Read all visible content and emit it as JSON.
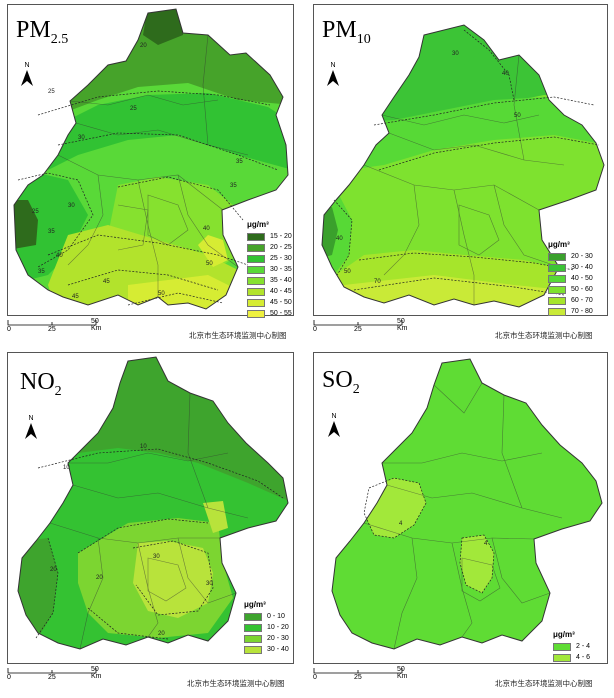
{
  "panels": [
    {
      "id": "pm25",
      "title_main": "PM",
      "title_sub": "2.5",
      "legend_unit": "μg/m³",
      "legend": [
        {
          "label": "15 - 20",
          "color": "#2e6b1c"
        },
        {
          "label": "20 - 25",
          "color": "#46a32a"
        },
        {
          "label": "25 - 30",
          "color": "#31c233"
        },
        {
          "label": "30 - 35",
          "color": "#59d938"
        },
        {
          "label": "35 - 40",
          "color": "#86e12f"
        },
        {
          "label": "40 - 45",
          "color": "#b2e32c"
        },
        {
          "label": "45 - 50",
          "color": "#d6ec33"
        },
        {
          "label": "50 - 55",
          "color": "#eef03f"
        }
      ],
      "contour_labels": [
        "20",
        "25",
        "25",
        "30",
        "35",
        "35",
        "25",
        "40",
        "40",
        "45",
        "45",
        "50",
        "50",
        "35",
        "35",
        "30"
      ],
      "scale": {
        "ticks": [
          "0",
          "25",
          "50 Km"
        ]
      },
      "credit": "北京市生态环境监测中心制图"
    },
    {
      "id": "pm10",
      "title_main": "PM",
      "title_sub": "10",
      "legend_unit": "μg/m³",
      "legend": [
        {
          "label": "20 - 30",
          "color": "#3aa02c"
        },
        {
          "label": "30 - 40",
          "color": "#3cc436"
        },
        {
          "label": "40 - 50",
          "color": "#57d936"
        },
        {
          "label": "50 - 60",
          "color": "#7ee22f"
        },
        {
          "label": "60 - 70",
          "color": "#a6e52b"
        },
        {
          "label": "70 - 80",
          "color": "#c9ea37"
        }
      ],
      "contour_labels": [
        "30",
        "40",
        "50",
        "50",
        "70",
        "40"
      ],
      "scale": {
        "ticks": [
          "0",
          "25",
          "50 Km"
        ]
      },
      "credit": "北京市生态环境监测中心制图"
    },
    {
      "id": "no2",
      "title_main": "NO",
      "title_sub": "2",
      "legend_unit": "μg/m³",
      "legend": [
        {
          "label": "0 - 10",
          "color": "#3ea42d"
        },
        {
          "label": "10 - 20",
          "color": "#34c232"
        },
        {
          "label": "20 - 30",
          "color": "#7cd531"
        },
        {
          "label": "30 - 40",
          "color": "#b8e33b"
        }
      ],
      "contour_labels": [
        "10",
        "10",
        "20",
        "20",
        "20",
        "30",
        "30"
      ],
      "scale": {
        "ticks": [
          "0",
          "25",
          "50 Km"
        ]
      },
      "credit": "北京市生态环境监测中心制图"
    },
    {
      "id": "so2",
      "title_main": "SO",
      "title_sub": "2",
      "legend_unit": "μg/m³",
      "legend": [
        {
          "label": "2 - 4",
          "color": "#5fdc34"
        },
        {
          "label": "4 - 6",
          "color": "#a2e83a"
        }
      ],
      "contour_labels": [
        "4",
        "4"
      ],
      "scale": {
        "ticks": [
          "0",
          "25",
          "50 Km"
        ]
      },
      "credit": "北京市生态环境监测中心制图"
    }
  ],
  "north_label": "N"
}
